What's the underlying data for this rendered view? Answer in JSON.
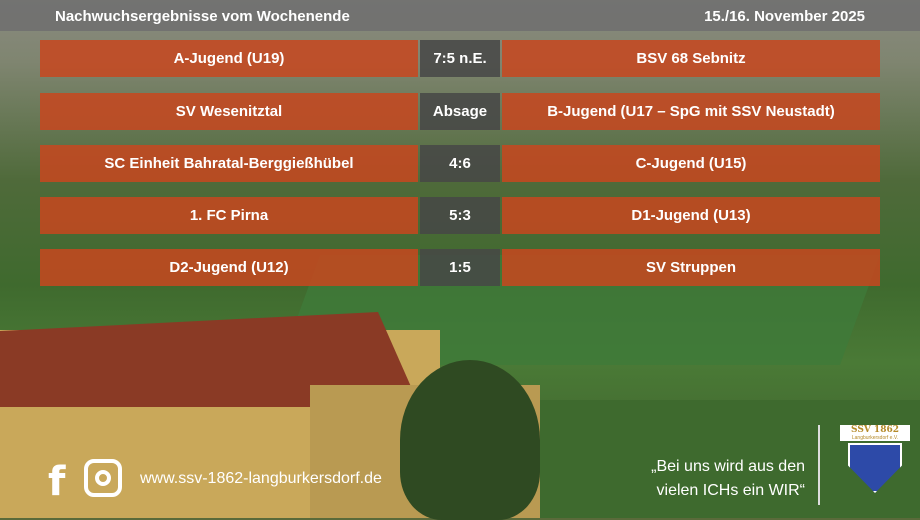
{
  "header": {
    "title": "Nachwuchsergebnisse vom Wochenende",
    "date": "15./16. November 2025"
  },
  "results": [
    {
      "home": "A-Jugend (U19)",
      "score": "7:5 n.E.",
      "away": "BSV 68 Sebnitz"
    },
    {
      "home": "SV Wesenitztal",
      "score": "Absage",
      "away": "B-Jugend (U17 – SpG mit SSV Neustadt)"
    },
    {
      "home": "SC Einheit Bahratal-Berggießhübel",
      "score": "4:6",
      "away": "C-Jugend (U15)"
    },
    {
      "home": "1. FC Pirna",
      "score": "5:3",
      "away": "D1-Jugend (U13)"
    },
    {
      "home": "D2-Jugend (U12)",
      "score": "1:5",
      "away": "SV Struppen"
    }
  ],
  "footer": {
    "facebook": "f",
    "website": "www.ssv-1862-langburkersdorf.de",
    "quote_line1": "„Bei uns wird aus den",
    "quote_line2": "vielen ICHs ein WIR“"
  },
  "logo": {
    "title": "SSV 1862",
    "subtitle": "Langburkersdorf e.V."
  },
  "colors": {
    "result_bar": "#c8461e",
    "score_bar": "#464646",
    "header_bar": "#6e6e6e"
  }
}
